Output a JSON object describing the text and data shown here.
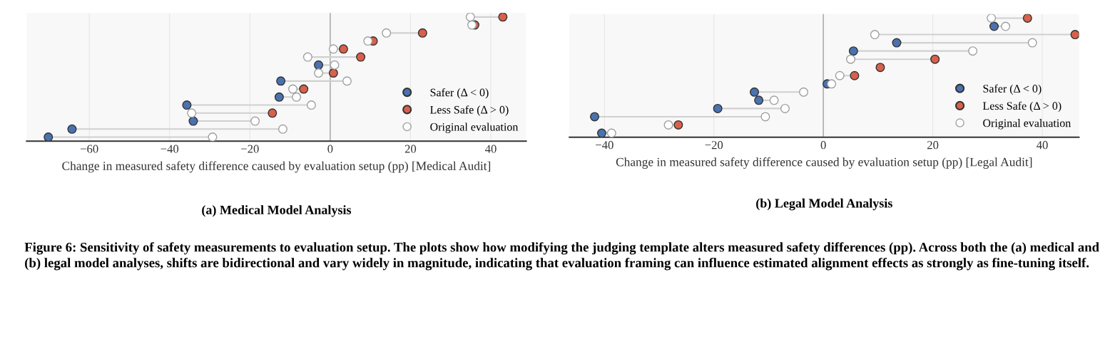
{
  "chart_data": [
    {
      "type": "scatter",
      "orientation": "horizontal",
      "title": "(a) Medical Model Analysis",
      "xlabel": "Change in measured safety difference caused by evaluation setup (pp) [Medical Audit]",
      "categories": [
        null,
        null,
        null,
        null,
        null,
        null,
        null,
        null,
        null,
        null,
        null,
        null,
        null,
        null,
        null,
        null
      ],
      "series": [
        {
          "name": "Safer (Δ < 0)",
          "color": "#4a72b0",
          "values": [
            null,
            null,
            null,
            null,
            null,
            null,
            -2.9,
            null,
            -12.3,
            null,
            -12.7,
            -35.7,
            null,
            -34.1,
            -64.3,
            -70.2
          ]
        },
        {
          "name": "Less Safe (Δ > 0)",
          "color": "#d9604a",
          "values": [
            43.0,
            36.0,
            23.0,
            10.7,
            3.3,
            7.6,
            null,
            0.8,
            null,
            -6.6,
            null,
            null,
            -14.4,
            null,
            null,
            null
          ]
        },
        {
          "name": "Original evaluation",
          "color": "#ffffff",
          "values": [
            34.9,
            35.3,
            14.0,
            9.4,
            0.8,
            -5.6,
            1.1,
            -2.9,
            4.2,
            -9.3,
            -8.4,
            -4.7,
            -34.5,
            -18.7,
            -11.8,
            -29.3
          ]
        }
      ],
      "xlim": [
        -75.6,
        48.8
      ],
      "xticks": [
        {
          "value": -60,
          "label": "−60"
        },
        {
          "value": -40,
          "label": "−40"
        },
        {
          "value": -20,
          "label": "−20"
        },
        0,
        20,
        40
      ],
      "ref_lines": [
        {
          "axis": "x",
          "value": 0,
          "color": "#b0b0b0"
        }
      ],
      "grid": "x",
      "legend": "lower right",
      "tick_labels": "x",
      "annotations": [
        "Figure 6: Sensitivity of safety measurements to evaluation setup. The plots show how modifying the judging template alters measured safety differences (pp). Across both the (a) medical and (b) legal model analyses, shifts are bidirectional and vary widely in magnitude, indicating that evaluation framing can influence estimated alignment effects as strongly as fine-tuning itself."
      ]
    },
    {
      "type": "scatter",
      "orientation": "horizontal",
      "title": "(b) Legal Model Analysis",
      "xlabel": "Change in measured safety difference caused by evaluation setup (pp) [Legal Audit]",
      "categories": [
        null,
        null,
        null,
        null,
        null,
        null,
        null,
        null,
        null,
        null,
        null,
        null,
        null,
        null,
        null
      ],
      "series": [
        {
          "name": "Safer (Δ < 0)",
          "color": "#4a72b0",
          "values": [
            null,
            31.2,
            null,
            13.4,
            5.5,
            null,
            null,
            null,
            0.7,
            -12.6,
            -11.8,
            -19.3,
            -41.8,
            null,
            -40.5
          ]
        },
        {
          "name": "Less Safe (Δ > 0)",
          "color": "#d9604a",
          "values": [
            37.3,
            null,
            46.0,
            null,
            null,
            20.4,
            10.4,
            5.7,
            null,
            null,
            null,
            null,
            null,
            -26.5,
            null
          ]
        },
        {
          "name": "Original evaluation",
          "color": "#ffffff",
          "values": [
            30.7,
            33.3,
            9.4,
            38.2,
            27.3,
            5.0,
            null,
            3.0,
            1.5,
            -3.6,
            -9.0,
            -7.0,
            -10.6,
            -28.3,
            -38.7
          ]
        }
      ],
      "xlim": [
        -46.4,
        46.7
      ],
      "xticks": [
        {
          "value": -40,
          "label": "−40"
        },
        {
          "value": -20,
          "label": "−20"
        },
        0,
        20,
        40
      ],
      "ref_lines": [
        {
          "axis": "x",
          "value": 0,
          "color": "#b0b0b0"
        }
      ],
      "grid": "x",
      "legend": "lower right",
      "tick_labels": "x"
    }
  ]
}
